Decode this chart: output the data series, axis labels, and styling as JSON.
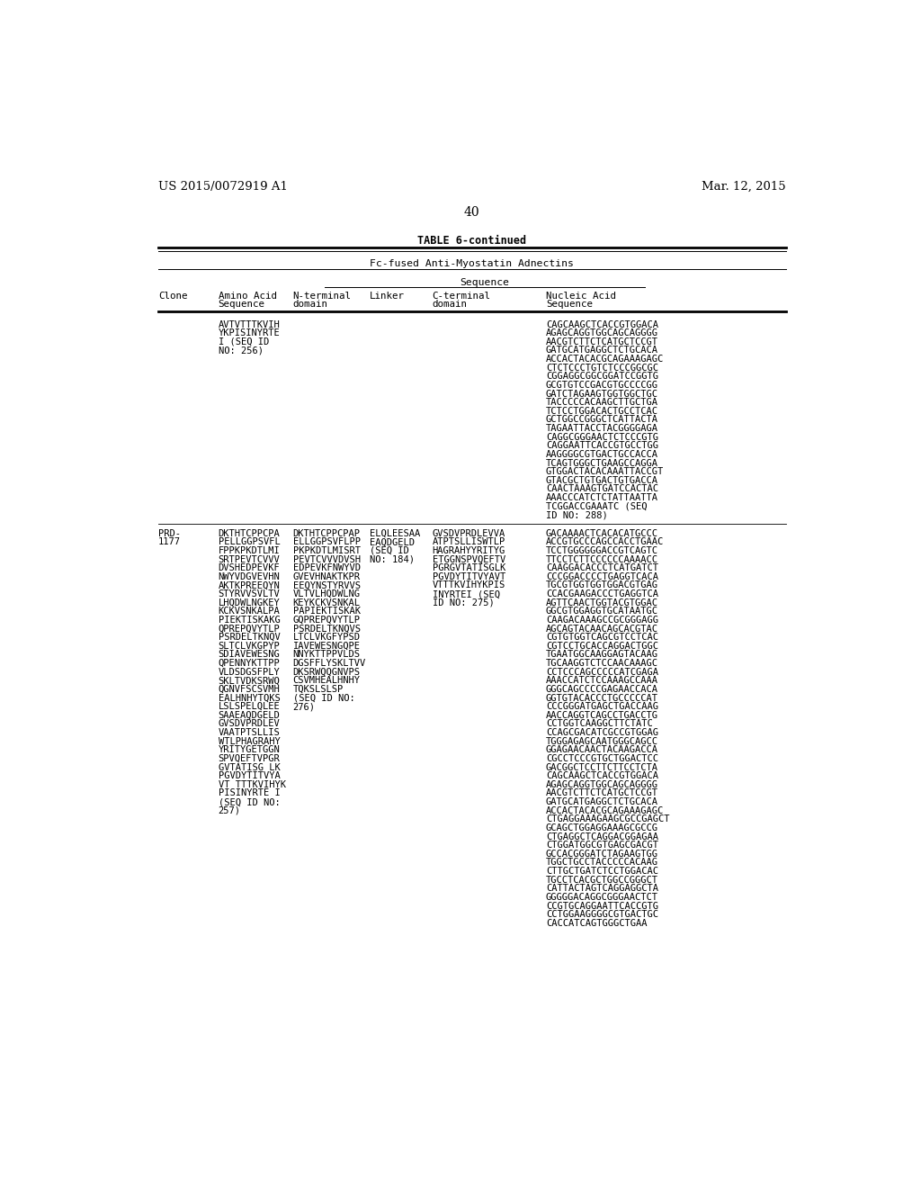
{
  "page_header_left": "US 2015/0072919 A1",
  "page_header_right": "Mar. 12, 2015",
  "page_number": "40",
  "table_title": "TABLE 6-continued",
  "table_subtitle": "Fc-fused Anti-Myostatin Adnectins",
  "col_header_group": "Sequence",
  "background_color": "#ffffff",
  "text_color": "#000000",
  "row1_amino": [
    "AVTVTTTKVIH",
    "YKPISINYRTE",
    "I (SEQ ID",
    "NO: 256)"
  ],
  "row1_nucleic": [
    "CAGCAAGCTCACCGTGGACA",
    "AGAGCAGGTGGCAGCAGGGG",
    "AACGTCTTCTCATGCTCCGT",
    "GATGCATGAGGCTCTGCACA",
    "ACCACTACACGCAGAAAGAGC",
    "CTCTCCCTGTCTCCCGGCGC",
    "CGGAGGCGGCGGATCCGGTG",
    "GCGTGTCCGACGTGCCCCGG",
    "GATCTAGAAGTGGTGGCTGC",
    "TACCCCCACAAGCTTGCTGA",
    "TCTCCTGGACACTGCCTCAC",
    "GCTGGCCGGGCTCATTACTA",
    "TAGAATTACCTACGGGGAGA",
    "CAGGCGGGAACTCTCCCGTG",
    "CAGGAATTCACCGTGCCTGG",
    "AAGGGGCGTGACTGCCACCA",
    "TCAGTGGGCTGAAGCCAGGA",
    "GTGGACTACACAAATTACCGT",
    "GTACGCTGTGACTGTGACCA",
    "CAACTAAAGTGATCCACTAC",
    "AAACCCATCTCTATTAATTA",
    "TCGGACCGAAATC (SEQ",
    "ID NO: 288)"
  ],
  "row2_clone": [
    "PRD-",
    "1177"
  ],
  "row2_amino": [
    "DKTHTCPPCPA",
    "PELLGGPSVFL",
    "FPPKPKDTLMI",
    "SRTPEVTCVVV",
    "DVSHEDPEVKF",
    "NWYVDGVEVHN",
    "AKTKPREEQYN",
    "STYRVVSVLTV",
    "LHQDWLNGKEY",
    "KCKVSNKALPA",
    "PIEKTISKAKG",
    "QPREPQVYTLP",
    "PSRDELTKNQV",
    "SLTCLVKGPYP",
    "SDIAVEWESNG",
    "QPENNYKTTPP",
    "VLDSDGSFPLY",
    "SKLTVDKSRWQ",
    "QGNVFSCSVMH",
    "EALHNHYTQKS",
    "LSLSPELQLEE",
    "SAAEAQDGELD",
    "GVSDVPRDLEV",
    "VAATPTSLLIS",
    "WTLPHAGRAHY",
    "YRITYGETGGN",
    "SPVQEFTVPGR",
    "GVTATISG LK",
    "PGVDYTITVYA",
    "VT TTTKVIHYK",
    "PISINYRTE I",
    "(SEQ ID NO:",
    "257)"
  ],
  "row2_nterminal": [
    "DKTHTCPPCPAP",
    "ELLGGPSVFLPP",
    "PKPKDTLMISRT",
    "PEVTCVVVDVSH",
    "EDPEVKFNWYVD",
    "GVEVHNAKTKPR",
    "EEQYNSTYRVVS",
    "VLTVLHQDWLNG",
    "KEYKCKVSNKAL",
    "PAPIEKTISKAK",
    "GQPREPQVYTLP",
    "PSRDELTKNQVS",
    "LTCLVKGFYPSD",
    "IAVEWESNGQPE",
    "NNYKTTPPVLDS",
    "DGSFFLYSKLTVV",
    "DKSRWQQGNVPS",
    "CSVMHEALHNHY",
    "TQKSLSLSP",
    "(SEQ ID NO:",
    "276)"
  ],
  "row2_linker": [
    "ELQLEESAA",
    "EAQDGELD",
    "(SEQ ID",
    "NO: 184)"
  ],
  "row2_cterminal": [
    "GVSDVPRDLEVVA",
    "ATPTSLLISWTLP",
    "HAGRAHYYRITYG",
    "ETGGNSPVQEFTV",
    "PGRGVTATISGLK",
    "PGVDYTITVYAVT",
    "VTTTKVIHYKPIS",
    "INYRTEI (SEQ",
    "ID NO: 275)"
  ],
  "row2_nucleic": [
    "GACAAAACTCACACATGCCC",
    "ACCGTGCCCAGCCACCTGAAC",
    "TCCTGGGGGGACCGTCAGTC",
    "TTCCTCTTCCCCCСAAAACC",
    "CAAGGACACCCTCATGATCT",
    "CCCGGACCСCTGAGGTCACA",
    "TGCGTGGTGGTGGACGTGAG",
    "CCACGAAGACCCTGAGGTCA",
    "AGTTCAACTGGTACGTGGAC",
    "GGCGTGGAGGTGCATAATGC",
    "CAAGACAAAGCCGCGGGAGG",
    "AGCAGTACAACAGCACGTAC",
    "CGTGTGGTCAGCGTCCTCAC",
    "CGTCCTGCACCAGGACTGGC",
    "TGAATGGCAAGGAGTACAAG",
    "TGCAAGGTCTCCAACAAAGC",
    "CCTCCCAGCCCCCATCGAGA",
    "AAACCATCTCCAAAGCCAAA",
    "GGGCAGCCCCGAGAACCACA",
    "GGTGTACACCCTGCCCСCAT",
    "CCCGGGATGAGCTGACCAAG",
    "AACCAGGTCAGCCTGACCTG",
    "CCTGGTCAAGGCTTCTATC",
    "CCAGCGACATCGCCGTGGAG",
    "TGGGAGAGCAATGGGCAGCC",
    "GGAGAACAACTACAAGACCA",
    "CGCCTCCCGTGCTGGACTCC",
    "GACGGCTCCTTCTTCCTCTA",
    "CAGCAAGCTCACCGTGGACA",
    "AGAGCAGGTGGCAGCAGGGG",
    "AACGTCTTCTCATGCTCCGT",
    "GATGCATGAGGCTCTGCACA",
    "ACCACTACACGCAGAAAGAGC",
    "CTGAGGAAAGAAGCGCCGAGCT",
    "GCAGCTGGAGGAAAGCGCCG",
    "CTGAGGCTCAGGACGGAGAA",
    "CTGGATGGCGTGAGCGACGT",
    "GCCACGGGATCTAGAAGTGG",
    "TGGCTGCCTACCCCCACAAG",
    "CTTGCTGATCTCCTGGACAC",
    "TGCCTCACGCTGGCCGGGCT",
    "CATTACTAGTCAGGAGGCTA",
    "GGGGGACAGGCGGGAACTCT",
    "CCGTGCAGGAATTCACCGTG",
    "CCTGGAAGGGGCGTGACTGC",
    "CACCATCAGTGGGCTGAA"
  ]
}
